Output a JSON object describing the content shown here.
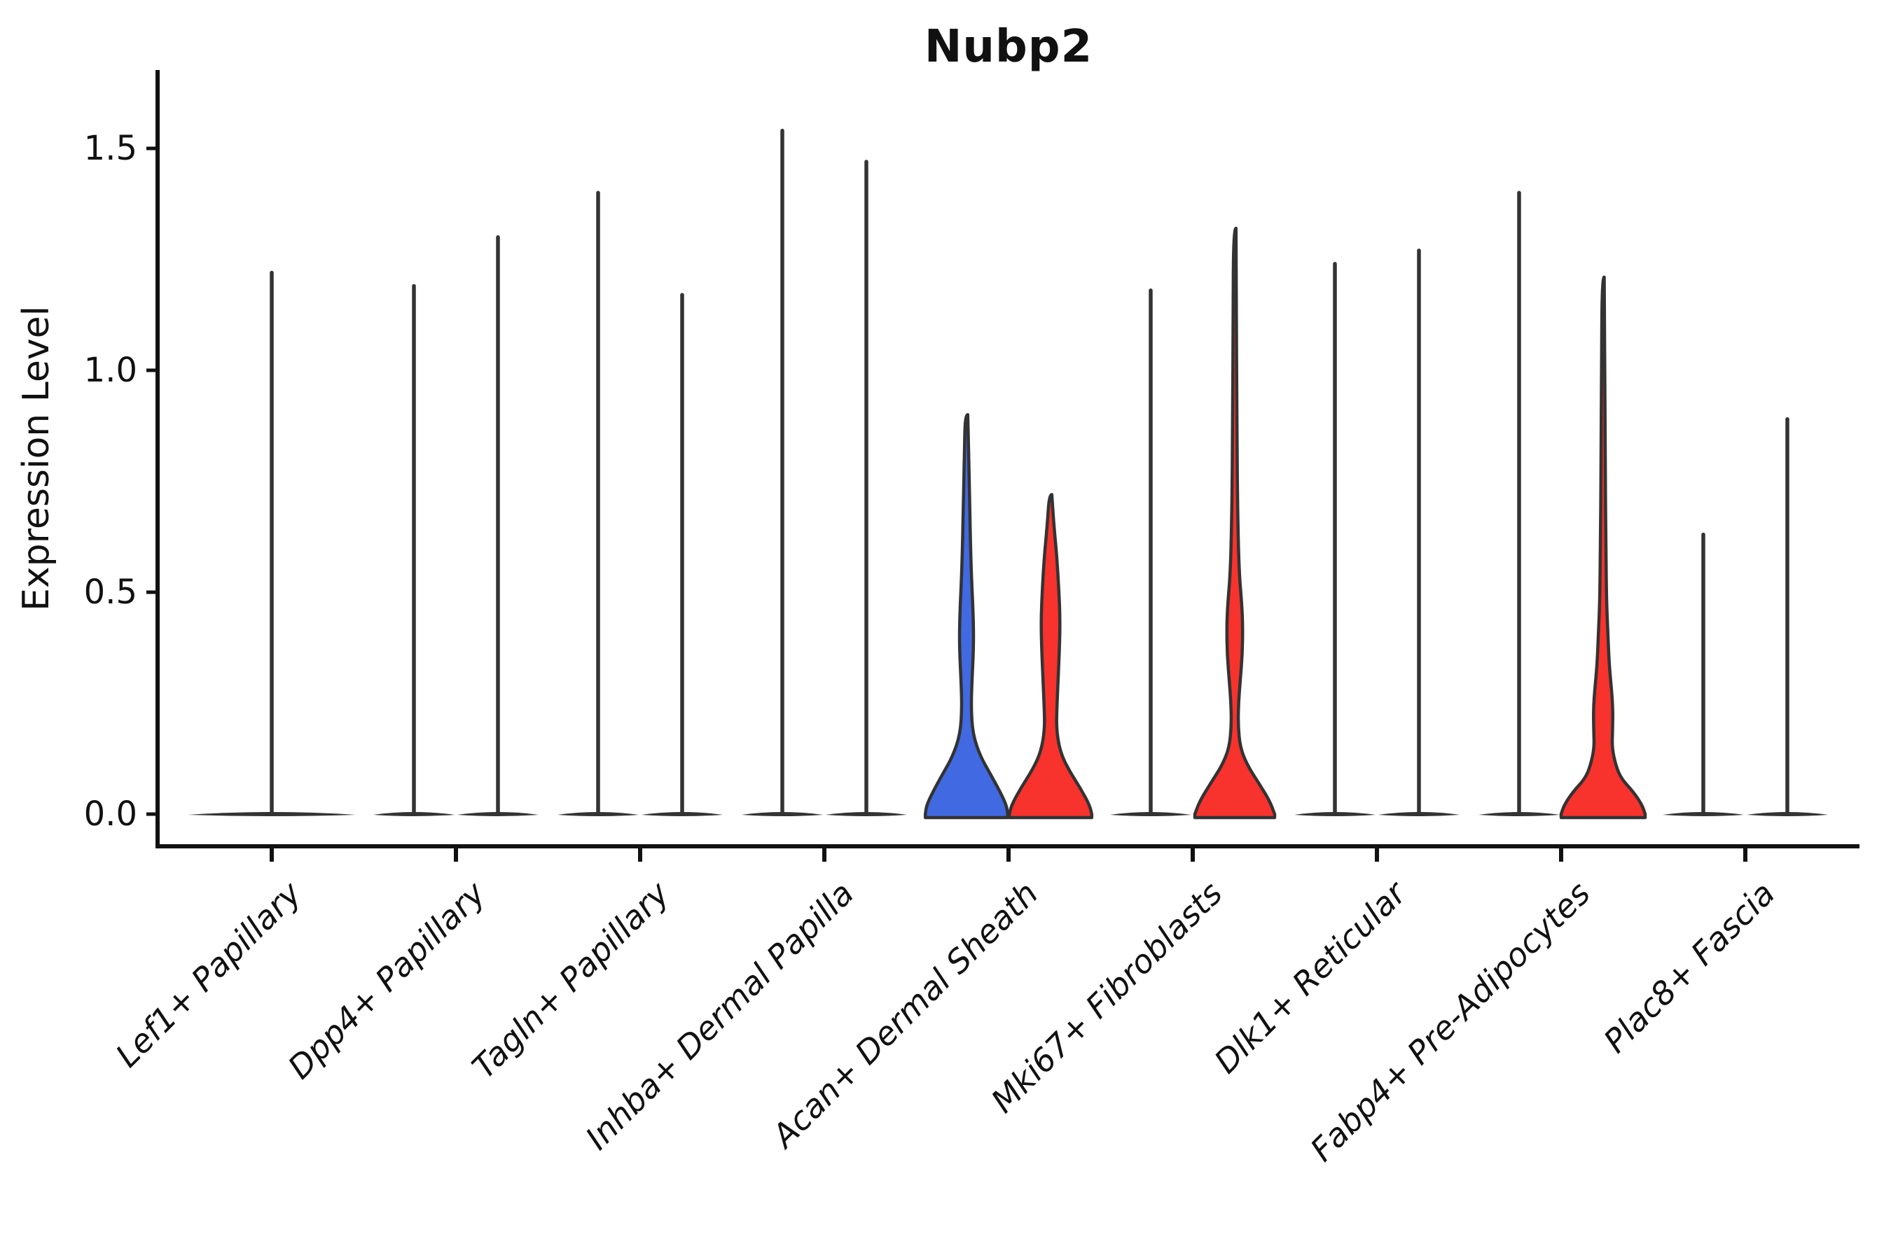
{
  "figure": {
    "title": "Nubp2",
    "ylabel": "Expression Level"
  },
  "chart_data": {
    "type": "violin",
    "title": "Nubp2",
    "xlabel": "",
    "ylabel": "Expression Level",
    "ylim": [
      -0.07,
      1.62
    ],
    "yticks": [
      0.0,
      0.5,
      1.0,
      1.5
    ],
    "ytick_labels": [
      "0.0",
      "0.5",
      "1.0",
      "1.5"
    ],
    "grid": false,
    "legend": "none",
    "outline_color": "#333333",
    "axis_color": "#111111",
    "group_colors": {
      "left": "#4169E1",
      "right": "#F8322C"
    },
    "categories": [
      "Lef1+ Papillary",
      "Dpp4+ Papillary",
      "Tagln+ Papillary",
      "Inhba+ Dermal Papilla",
      "Acan+ Dermal Sheath",
      "Mki67+ Fibroblasts",
      "Dlk1+ Reticular",
      "Fabp4+ Pre-Adipocytes",
      "Plac8+ Fascia"
    ],
    "violins": [
      {
        "category": "Lef1+ Papillary",
        "cat_index": 0,
        "side": "center",
        "style": "line",
        "max_expression": 1.22,
        "base_halfwidth_frac": 2.0
      },
      {
        "category": "Dpp4+ Papillary",
        "cat_index": 1,
        "side": "left",
        "style": "line",
        "max_expression": 1.19,
        "base_halfwidth_frac": 0.97
      },
      {
        "category": "Dpp4+ Papillary",
        "cat_index": 1,
        "side": "right",
        "style": "line",
        "max_expression": 1.3,
        "base_halfwidth_frac": 0.97
      },
      {
        "category": "Tagln+ Papillary",
        "cat_index": 2,
        "side": "left",
        "style": "line",
        "max_expression": 1.4,
        "base_halfwidth_frac": 0.97
      },
      {
        "category": "Tagln+ Papillary",
        "cat_index": 2,
        "side": "right",
        "style": "line",
        "max_expression": 1.17,
        "base_halfwidth_frac": 0.97
      },
      {
        "category": "Inhba+ Dermal Papilla",
        "cat_index": 3,
        "side": "left",
        "style": "line",
        "max_expression": 1.54,
        "base_halfwidth_frac": 0.97
      },
      {
        "category": "Inhba+ Dermal Papilla",
        "cat_index": 3,
        "side": "right",
        "style": "line",
        "max_expression": 1.47,
        "base_halfwidth_frac": 0.97
      },
      {
        "category": "Acan+ Dermal Sheath",
        "cat_index": 4,
        "side": "left",
        "style": "filled",
        "color": "#4169E1",
        "max_expression": 0.9,
        "profile": [
          [
            0,
            0.98
          ],
          [
            0.02,
            0.95
          ],
          [
            0.05,
            0.8
          ],
          [
            0.09,
            0.57
          ],
          [
            0.13,
            0.33
          ],
          [
            0.18,
            0.15
          ],
          [
            0.24,
            0.11
          ],
          [
            0.3,
            0.13
          ],
          [
            0.38,
            0.17
          ],
          [
            0.45,
            0.16
          ],
          [
            0.55,
            0.11
          ],
          [
            0.7,
            0.075
          ],
          [
            0.82,
            0.05
          ],
          [
            0.9,
            0.03
          ]
        ]
      },
      {
        "category": "Acan+ Dermal Sheath",
        "cat_index": 4,
        "side": "right",
        "style": "filled",
        "color": "#F8322C",
        "max_expression": 0.72,
        "profile": [
          [
            0,
            0.98
          ],
          [
            0.02,
            0.93
          ],
          [
            0.06,
            0.7
          ],
          [
            0.1,
            0.43
          ],
          [
            0.14,
            0.23
          ],
          [
            0.19,
            0.14
          ],
          [
            0.24,
            0.15
          ],
          [
            0.3,
            0.18
          ],
          [
            0.38,
            0.215
          ],
          [
            0.44,
            0.225
          ],
          [
            0.5,
            0.2
          ],
          [
            0.58,
            0.15
          ],
          [
            0.65,
            0.08
          ],
          [
            0.72,
            0.03
          ]
        ]
      },
      {
        "category": "Mki67+ Fibroblasts",
        "cat_index": 5,
        "side": "left",
        "style": "line",
        "max_expression": 1.18,
        "base_halfwidth_frac": 0.97
      },
      {
        "category": "Mki67+ Fibroblasts",
        "cat_index": 5,
        "side": "right",
        "style": "filled",
        "color": "#F8322C",
        "max_expression": 1.32,
        "profile": [
          [
            0,
            0.95
          ],
          [
            0.03,
            0.83
          ],
          [
            0.07,
            0.57
          ],
          [
            0.11,
            0.3
          ],
          [
            0.15,
            0.13
          ],
          [
            0.2,
            0.08
          ],
          [
            0.25,
            0.09
          ],
          [
            0.3,
            0.13
          ],
          [
            0.36,
            0.18
          ],
          [
            0.42,
            0.19
          ],
          [
            0.47,
            0.17
          ],
          [
            0.55,
            0.1
          ],
          [
            0.7,
            0.065
          ],
          [
            0.9,
            0.05
          ],
          [
            1.1,
            0.04
          ],
          [
            1.32,
            0.03
          ]
        ]
      },
      {
        "category": "Dlk1+ Reticular",
        "cat_index": 6,
        "side": "left",
        "style": "line",
        "max_expression": 1.24,
        "base_halfwidth_frac": 0.97
      },
      {
        "category": "Dlk1+ Reticular",
        "cat_index": 6,
        "side": "right",
        "style": "line",
        "max_expression": 1.27,
        "base_halfwidth_frac": 0.97
      },
      {
        "category": "Fabp4+ Pre-Adipocytes",
        "cat_index": 7,
        "side": "left",
        "style": "line",
        "max_expression": 1.4,
        "base_halfwidth_frac": 0.97
      },
      {
        "category": "Fabp4+ Pre-Adipocytes",
        "cat_index": 7,
        "side": "right",
        "style": "filled",
        "color": "#F8322C",
        "max_expression": 1.21,
        "profile": [
          [
            0,
            1.0
          ],
          [
            0.02,
            0.93
          ],
          [
            0.05,
            0.72
          ],
          [
            0.08,
            0.43
          ],
          [
            0.11,
            0.3
          ],
          [
            0.15,
            0.21
          ],
          [
            0.19,
            0.225
          ],
          [
            0.24,
            0.23
          ],
          [
            0.28,
            0.2
          ],
          [
            0.33,
            0.15
          ],
          [
            0.4,
            0.115
          ],
          [
            0.48,
            0.08
          ],
          [
            0.6,
            0.065
          ],
          [
            0.8,
            0.05
          ],
          [
            1.0,
            0.04
          ],
          [
            1.21,
            0.025
          ]
        ]
      },
      {
        "category": "Plac8+ Fascia",
        "cat_index": 8,
        "side": "left",
        "style": "line",
        "max_expression": 0.63,
        "base_halfwidth_frac": 0.97
      },
      {
        "category": "Plac8+ Fascia",
        "cat_index": 8,
        "side": "right",
        "style": "line",
        "max_expression": 0.89,
        "base_halfwidth_frac": 0.97
      }
    ]
  }
}
